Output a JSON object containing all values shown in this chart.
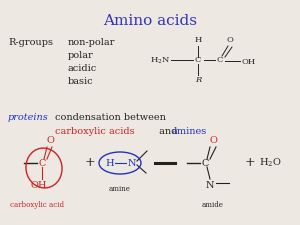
{
  "title": "Amino acids",
  "title_color": "#3333bb",
  "title_fontsize": 11,
  "bg_color": "#ede9e2",
  "rgroups_label": "R-groups",
  "rgroups_items": [
    "non-polar",
    "polar",
    "acidic",
    "basic"
  ],
  "black_color": "#222222",
  "red_color": "#cc2222",
  "blue_color": "#2233bb",
  "fs_main": 7.0,
  "fs_small": 6.0,
  "fs_label": 5.0
}
